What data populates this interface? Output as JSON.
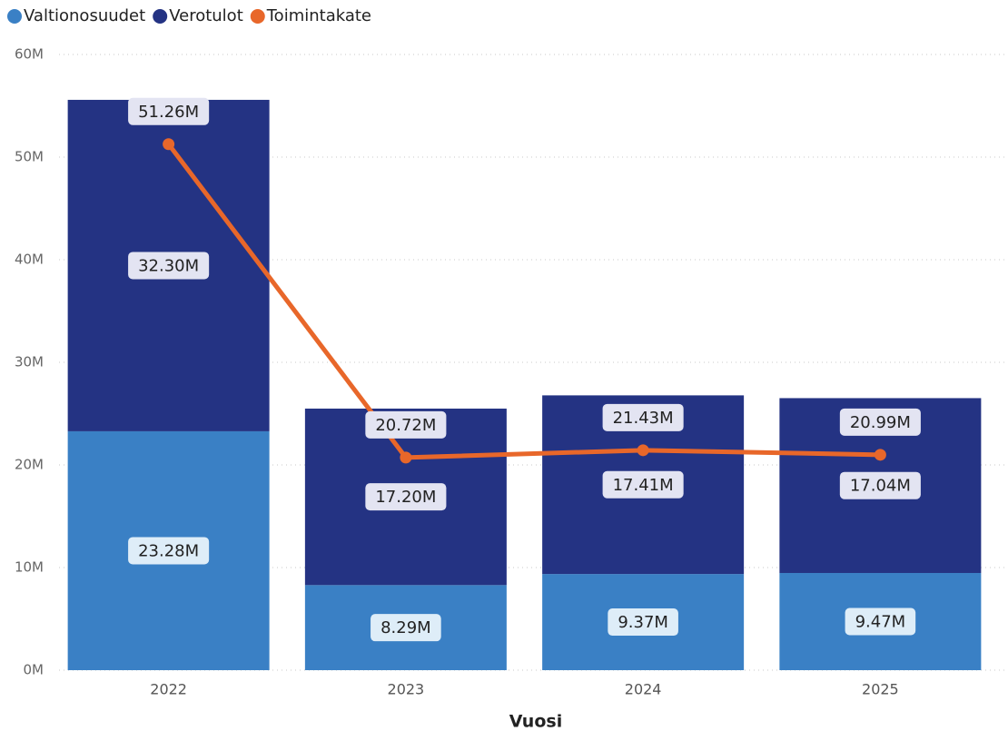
{
  "chart_data": {
    "type": "bar-line",
    "x_label": "Vuosi",
    "categories": [
      "2022",
      "2023",
      "2024",
      "2025"
    ],
    "series": [
      {
        "name": "Valtionosuudet",
        "type": "bar",
        "color": "#3a80c5",
        "label_bg": "#deedf8",
        "values": [
          23.28,
          8.29,
          9.37,
          9.47
        ],
        "value_labels": [
          "23.28M",
          "8.29M",
          "9.37M",
          "9.47M"
        ]
      },
      {
        "name": "Verotulot",
        "type": "bar",
        "color": "#243383",
        "label_bg": "#e3e4f2",
        "values": [
          32.3,
          17.2,
          17.41,
          17.04
        ],
        "value_labels": [
          "32.30M",
          "17.20M",
          "17.41M",
          "17.04M"
        ]
      },
      {
        "name": "Toimintakate",
        "type": "line",
        "color": "#e8672a",
        "label_bg": "#e3e4f2",
        "values": [
          51.26,
          20.72,
          21.43,
          20.99
        ],
        "value_labels": [
          "51.26M",
          "20.72M",
          "21.43M",
          "20.99M"
        ]
      }
    ],
    "ylim": [
      0,
      60
    ],
    "yticks": [
      {
        "value": 0,
        "label": "0M"
      },
      {
        "value": 10,
        "label": "10M"
      },
      {
        "value": 20,
        "label": "20M"
      },
      {
        "value": 30,
        "label": "30M"
      },
      {
        "value": 40,
        "label": "40M"
      },
      {
        "value": 50,
        "label": "50M"
      },
      {
        "value": 60,
        "label": "60M"
      }
    ],
    "grid": true,
    "legend": "top-left"
  }
}
